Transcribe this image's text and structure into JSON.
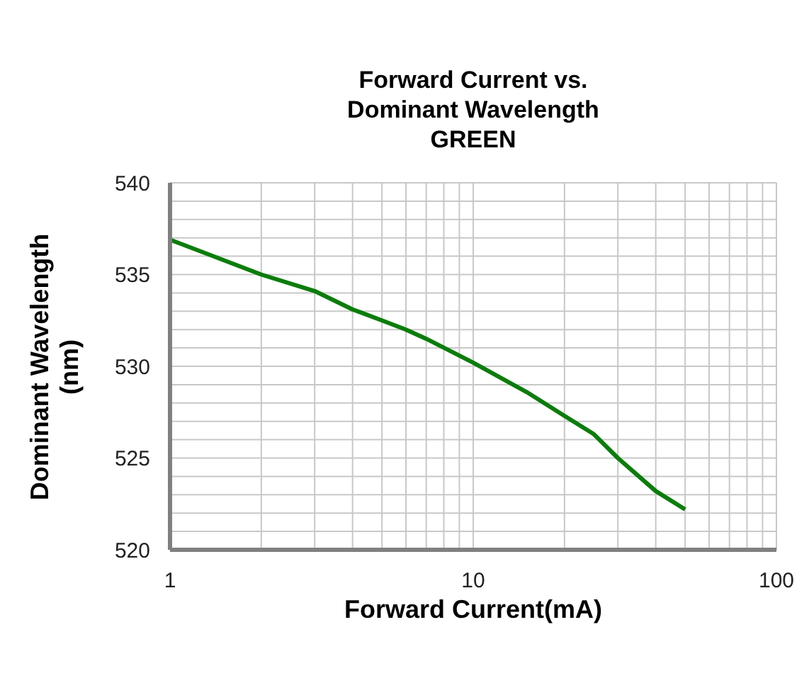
{
  "chart_data": {
    "type": "line",
    "title": "Forward Current vs.\nDominant Wavelength\nGREEN",
    "xlabel": "Forward Current(mA)",
    "ylabel": "Dominant Wavelength\n(nm)",
    "log": "x",
    "grid": true,
    "xlim": [
      1,
      100
    ],
    "xticks": [
      1,
      10,
      100
    ],
    "ylim": [
      520,
      540
    ],
    "yticks": [
      520,
      525,
      530,
      535,
      540
    ],
    "series": [
      {
        "color": "#0b7d0b",
        "x": [
          1,
          2,
          3,
          4,
          5,
          6,
          7,
          10,
          15,
          20,
          25,
          30,
          40,
          50
        ],
        "values": [
          536.9,
          535.0,
          534.1,
          533.1,
          532.5,
          532.0,
          531.5,
          530.2,
          528.6,
          527.3,
          526.3,
          525.0,
          523.2,
          522.2
        ]
      }
    ]
  }
}
